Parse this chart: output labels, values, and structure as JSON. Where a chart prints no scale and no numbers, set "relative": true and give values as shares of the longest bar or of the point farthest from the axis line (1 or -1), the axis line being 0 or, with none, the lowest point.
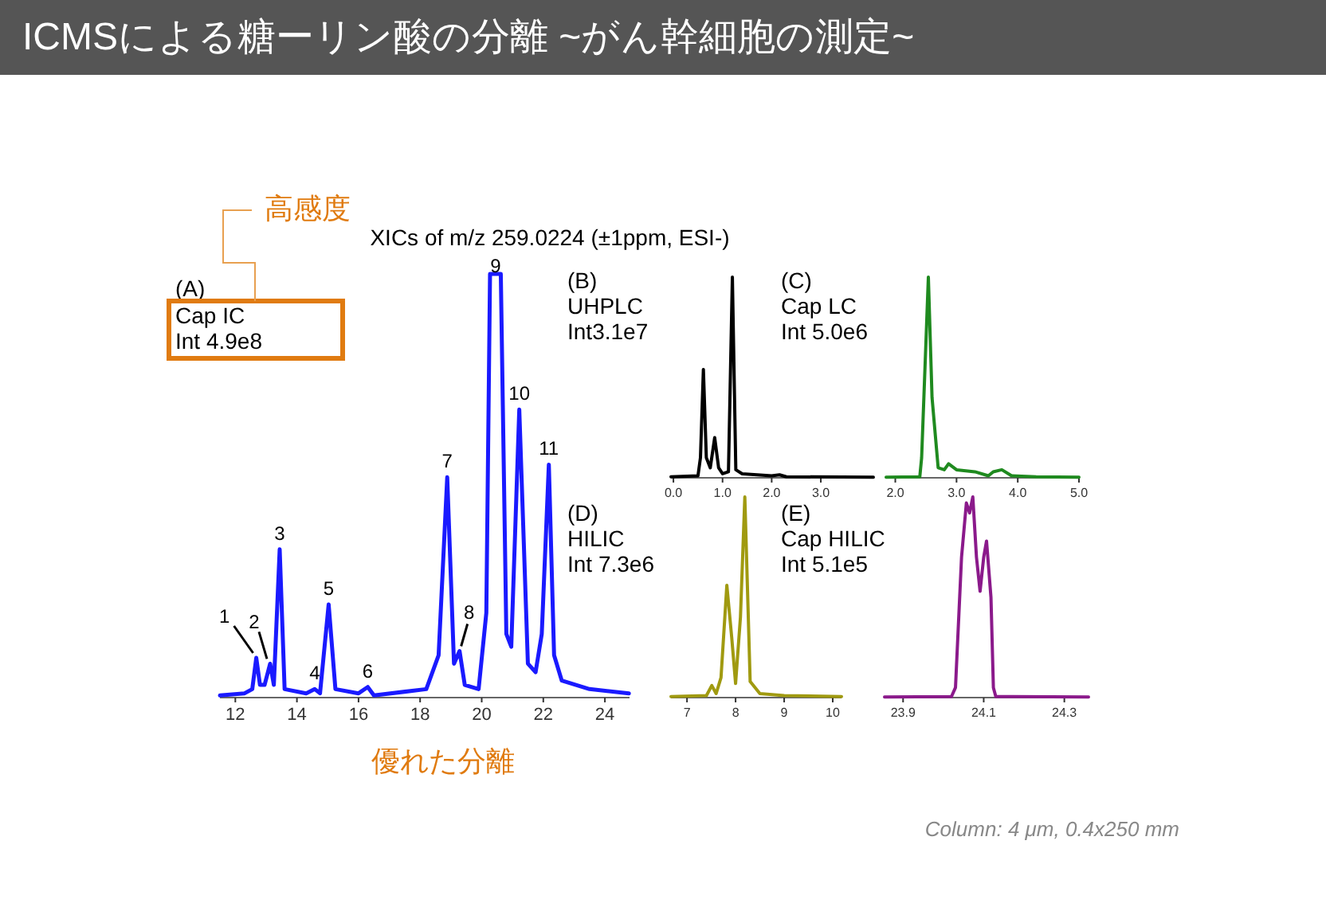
{
  "chart_data": [
    {
      "type": "line",
      "relative": true,
      "title": "ICMSによる糖ーリン酸の分離 ~がん幹細胞の測定~",
      "subtitle": "XICs of m/z 259.0224 (±1ppm, ESI-)",
      "xlim": [
        11.5,
        24.8
      ],
      "xticks": [
        12,
        14,
        16,
        18,
        20,
        22,
        24
      ],
      "x": [
        11.5,
        12.3,
        12.55,
        12.68,
        12.8,
        12.95,
        13.13,
        13.25,
        13.44,
        13.6,
        14.3,
        14.58,
        14.75,
        15.03,
        15.25,
        16.0,
        16.3,
        16.5,
        18.2,
        18.6,
        18.88,
        19.1,
        19.28,
        19.45,
        19.9,
        20.15,
        20.27,
        20.62,
        20.8,
        20.96,
        21.22,
        21.5,
        21.75,
        21.95,
        22.18,
        22.35,
        22.6,
        23.5,
        24.78
      ],
      "series": [
        {
          "color": "#1a1aff",
          "values": [
            0.005,
            0.01,
            0.02,
            0.094,
            0.03,
            0.03,
            0.08,
            0.03,
            0.35,
            0.02,
            0.01,
            0.02,
            0.01,
            0.22,
            0.02,
            0.01,
            0.025,
            0.005,
            0.02,
            0.1,
            0.52,
            0.08,
            0.11,
            0.03,
            0.02,
            0.2,
            1,
            1,
            0.15,
            0.12,
            0.68,
            0.08,
            0.06,
            0.15,
            0.55,
            0.1,
            0.04,
            0.02,
            0.01
          ]
        }
      ],
      "annotations": [
        "(A)",
        "Cap IC",
        "Int 4.9e8",
        "高感度",
        "優れた分離",
        "Column: 4 μm, 0.4x250 mm",
        {
          "text": "1",
          "x": 12.68,
          "y": 0.094
        },
        {
          "text": "2",
          "x": 13.13,
          "y": 0.08
        },
        {
          "text": "3",
          "x": 13.44,
          "y": 0.35
        },
        {
          "text": "4",
          "x": 14.58,
          "y": 0.02
        },
        {
          "text": "5",
          "x": 15.03,
          "y": 0.22
        },
        {
          "text": "6",
          "x": 16.3,
          "y": 0.025
        },
        {
          "text": "7",
          "x": 18.88,
          "y": 0.52
        },
        {
          "text": "8",
          "x": 19.28,
          "y": 0.11
        },
        {
          "text": "9",
          "x": 20.45,
          "y": 1
        },
        {
          "text": "10",
          "x": 21.22,
          "y": 0.68
        },
        {
          "text": "11",
          "x": 22.18,
          "y": 0.55
        }
      ]
    },
    {
      "type": "line",
      "relative": true,
      "xlim": [
        -0.05,
        4.07
      ],
      "xticks": [
        {
          "value": 0,
          "label": "0.0"
        },
        {
          "value": 1,
          "label": "1.0"
        },
        {
          "value": 2,
          "label": "2.0"
        },
        {
          "value": 3,
          "label": "3.0"
        }
      ],
      "x": [
        -0.05,
        0.5,
        0.55,
        0.61,
        0.67,
        0.75,
        0.84,
        0.92,
        1.0,
        1.12,
        1.2,
        1.27,
        1.4,
        2.0,
        2.16,
        2.3,
        4.07
      ],
      "series": [
        {
          "color": "#000000",
          "values": [
            0.005,
            0.01,
            0.1,
            0.54,
            0.1,
            0.05,
            0.2,
            0.05,
            0.02,
            0.03,
            1,
            0.04,
            0.02,
            0.01,
            0.015,
            0.005,
            0.003
          ]
        }
      ],
      "annotations": [
        "(B)",
        "UHPLC",
        "Int3.1e7"
      ]
    },
    {
      "type": "line",
      "relative": true,
      "xlim": [
        1.85,
        5.0
      ],
      "xticks": [
        {
          "value": 2,
          "label": "2.0"
        },
        {
          "value": 3,
          "label": "3.0"
        },
        {
          "value": 4,
          "label": "4.0"
        },
        {
          "value": 5,
          "label": "5.0"
        }
      ],
      "x": [
        1.85,
        2.4,
        2.43,
        2.54,
        2.6,
        2.7,
        2.8,
        2.87,
        3.0,
        3.3,
        3.52,
        3.6,
        3.74,
        3.9,
        4.3,
        5.0
      ],
      "series": [
        {
          "color": "#1f8a1f",
          "values": [
            0.003,
            0.005,
            0.1,
            1,
            0.4,
            0.05,
            0.04,
            0.07,
            0.04,
            0.03,
            0.01,
            0.03,
            0.04,
            0.01,
            0.005,
            0.003
          ]
        }
      ],
      "annotations": [
        "(C)",
        "Cap LC",
        "Int 5.0e6"
      ]
    },
    {
      "type": "line",
      "relative": true,
      "xlim": [
        6.67,
        10.18
      ],
      "xticks": [
        7,
        8,
        9,
        10
      ],
      "x": [
        6.67,
        7.4,
        7.51,
        7.6,
        7.7,
        7.82,
        7.92,
        8.0,
        8.1,
        8.19,
        8.3,
        8.5,
        9.0,
        10.18
      ],
      "series": [
        {
          "color": "#a09a10",
          "values": [
            0.005,
            0.01,
            0.06,
            0.02,
            0.1,
            0.56,
            0.3,
            0.07,
            0.4,
            1,
            0.08,
            0.02,
            0.01,
            0.005
          ]
        }
      ],
      "annotations": [
        "(D)",
        "HILIC",
        "Int 7.3e6"
      ]
    },
    {
      "type": "line",
      "relative": true,
      "xlim": [
        23.854,
        24.36
      ],
      "xticks": [
        23.9,
        24.1,
        24.3
      ],
      "x": [
        23.854,
        24.02,
        24.03,
        24.045,
        24.057,
        24.065,
        24.073,
        24.082,
        24.091,
        24.1,
        24.107,
        24.118,
        24.124,
        24.13,
        24.36
      ],
      "series": [
        {
          "color": "#8b1a8b",
          "values": [
            0.003,
            0.005,
            0.05,
            0.7,
            0.97,
            0.92,
            1,
            0.7,
            0.53,
            0.7,
            0.78,
            0.5,
            0.05,
            0.005,
            0.003
          ]
        }
      ],
      "annotations": [
        "(E)",
        "Cap HILIC",
        "Int 5.1e5"
      ]
    }
  ]
}
